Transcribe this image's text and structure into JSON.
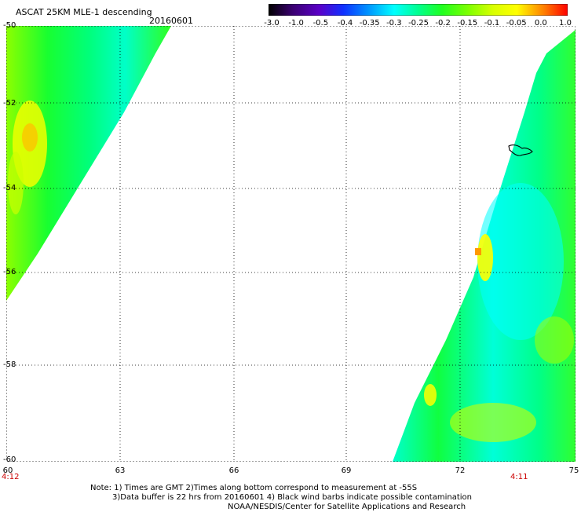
{
  "title": "ASCAT 25KM MLE-1 descending",
  "date": "20160601",
  "colorbar": {
    "labels": [
      "-3.0",
      "-1.0",
      "-0.5",
      "-0.4",
      "-0.35",
      "-0.3",
      "-0.25",
      "-0.2",
      "-0.15",
      "-0.1",
      "-0.05",
      "0.0",
      "1.0"
    ],
    "colors": [
      "#000000",
      "#3a0070",
      "#5a00c8",
      "#1030ff",
      "#0090ff",
      "#00ffff",
      "#00ff90",
      "#20ff20",
      "#80ff00",
      "#d8ff00",
      "#ffff00",
      "#ff8000",
      "#ff0000"
    ]
  },
  "axes": {
    "lat_labels": [
      "-50",
      "-52",
      "-54",
      "-56",
      "-58",
      "-60"
    ],
    "lon_labels": [
      "60",
      "63",
      "66",
      "69",
      "72",
      "75"
    ]
  },
  "time_labels": {
    "left": "4:12",
    "right": "4:11"
  },
  "notes": [
    "Note: 1) Times are GMT 2)Times along bottom correspond to measurement at -55S",
    "3)Data buffer is 22 hrs from 20160601 4) Black wind barbs indicate possible contamination",
    "NOAA/NESDIS/Center for Satellite Applications and Research"
  ]
}
